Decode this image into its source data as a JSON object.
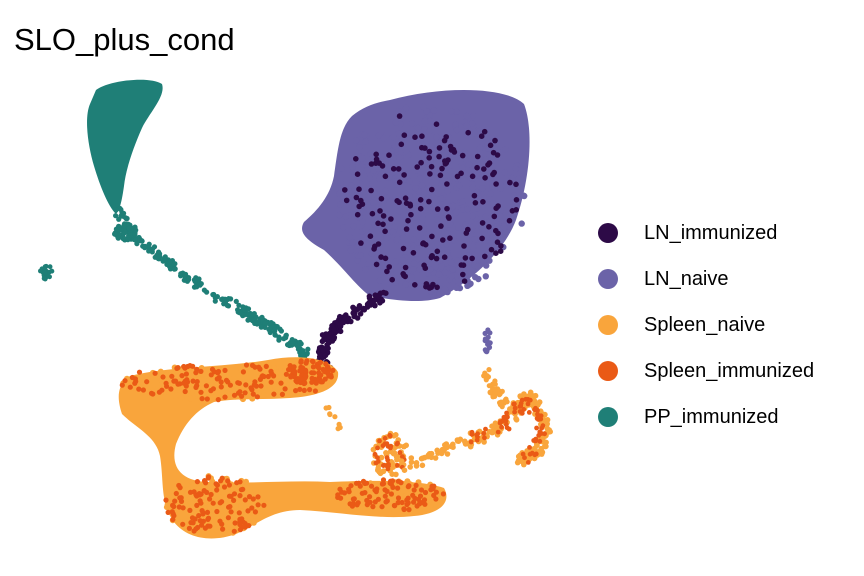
{
  "chart_data": {
    "type": "scatter",
    "title": "SLO_plus_cond",
    "xlabel": "",
    "ylabel": "",
    "axes_visible": false,
    "grid": false,
    "legend_position": "right",
    "series": [
      {
        "name": "LN_immunized",
        "color": "#2d0a47"
      },
      {
        "name": "LN_naive",
        "color": "#6b63a8"
      },
      {
        "name": "Spleen_naive",
        "color": "#f9a53c"
      },
      {
        "name": "Spleen_immunized",
        "color": "#ea5a16"
      },
      {
        "name": "PP_immunized",
        "color": "#1f7f77"
      }
    ]
  }
}
